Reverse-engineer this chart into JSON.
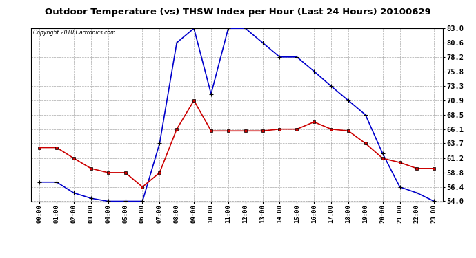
{
  "title": "Outdoor Temperature (vs) THSW Index per Hour (Last 24 Hours) 20100629",
  "copyright": "Copyright 2010 Cartronics.com",
  "x_labels": [
    "00:00",
    "01:00",
    "02:00",
    "03:00",
    "04:00",
    "05:00",
    "06:00",
    "07:00",
    "08:00",
    "09:00",
    "10:00",
    "11:00",
    "12:00",
    "13:00",
    "14:00",
    "15:00",
    "16:00",
    "17:00",
    "18:00",
    "19:00",
    "20:00",
    "21:00",
    "22:00",
    "23:00"
  ],
  "temp_data": [
    63.0,
    63.0,
    61.2,
    59.5,
    58.8,
    58.8,
    56.4,
    58.8,
    66.1,
    70.9,
    65.8,
    65.8,
    65.8,
    65.8,
    66.1,
    66.1,
    67.3,
    66.1,
    65.8,
    63.7,
    61.2,
    60.5,
    59.5,
    59.5
  ],
  "thsw_data": [
    57.2,
    57.2,
    55.4,
    54.5,
    54.0,
    54.0,
    54.0,
    63.7,
    80.6,
    83.0,
    72.0,
    83.0,
    83.0,
    80.6,
    78.2,
    78.2,
    75.8,
    73.3,
    70.9,
    68.5,
    62.0,
    56.4,
    55.4,
    54.0
  ],
  "ylim_min": 54.0,
  "ylim_max": 83.0,
  "yticks": [
    54.0,
    56.4,
    58.8,
    61.2,
    63.7,
    66.1,
    68.5,
    70.9,
    73.3,
    75.8,
    78.2,
    80.6,
    83.0
  ],
  "temp_color": "#cc0000",
  "thsw_color": "#0000cc",
  "bg_color": "#ffffff",
  "grid_color": "#aaaaaa",
  "title_fontsize": 9.5
}
